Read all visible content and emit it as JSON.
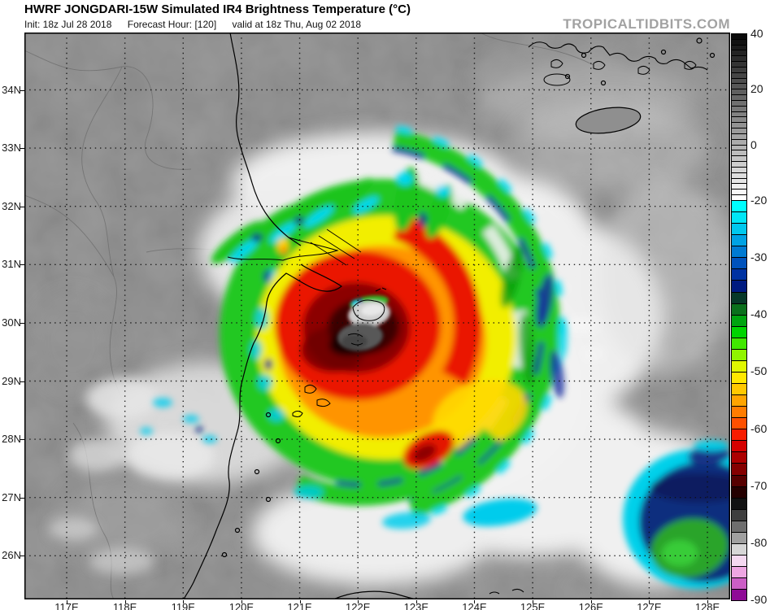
{
  "header": {
    "title": "HWRF JONGDARI-15W Simulated IR4 Brightness Temperature (°C)",
    "init": "Init: 18z Jul 28 2018",
    "forecast_hour": "Forecast Hour: [120]",
    "valid": "valid at 18z Thu, Aug 02 2018",
    "watermark": "TROPICALTIDBITS.COM"
  },
  "axes": {
    "lat_labels": [
      "34N",
      "33N",
      "32N",
      "31N",
      "30N",
      "29N",
      "28N",
      "27N",
      "26N"
    ],
    "lon_labels": [
      "117E",
      "118E",
      "119E",
      "120E",
      "121E",
      "122E",
      "123E",
      "124E",
      "125E",
      "126E",
      "127E",
      "128E"
    ]
  },
  "colorbar": {
    "units": "°C",
    "tick_values": [
      40,
      20,
      0,
      -20,
      -30,
      -40,
      -50,
      -60,
      -70,
      -80,
      -90
    ],
    "gray_segments": [
      "#0a0a0a",
      "#121212",
      "#1b1b1b",
      "#232323",
      "#2c2c2c",
      "#343434",
      "#3d3d3d",
      "#454545",
      "#4e4e4e",
      "#565656",
      "#5f5f5f",
      "#676767",
      "#707070",
      "#787878",
      "#818181",
      "#898989",
      "#929292",
      "#9a9a9a",
      "#a3a3a3",
      "#ababab",
      "#b4b4b4",
      "#bcbcbc",
      "#c5c5c5",
      "#cdcdcd",
      "#d6d6d6",
      "#dedede",
      "#e7e7e7",
      "#efefef",
      "#f8f8f8",
      "#ffffff"
    ],
    "color_segments": [
      "#00ffff",
      "#00e6f6",
      "#00c8ee",
      "#00a2e4",
      "#007ad2",
      "#0052bc",
      "#0032a2",
      "#001a80",
      "#063828",
      "#0a701c",
      "#00a410",
      "#00d400",
      "#40e800",
      "#90f400",
      "#e0f800",
      "#ffe800",
      "#ffc800",
      "#ffa400",
      "#ff7c00",
      "#ff5000",
      "#f81c00",
      "#d40000",
      "#ac0000",
      "#840000",
      "#560000",
      "#240000",
      "#111111",
      "#3e3e3e",
      "#6e6e6e",
      "#a0a0a0",
      "#d6d6d6",
      "#f4d8f0",
      "#eea6e2",
      "#cc5ec6",
      "#8e0a96"
    ]
  },
  "palette": {
    "background_gray": "#898989",
    "cloud_white": "#f0f0f0",
    "band_green": "#22c822",
    "band_yellow": "#f2ee00",
    "band_orange": "#ff9400",
    "band_red": "#ea1200",
    "band_dark_red": "#8c0404",
    "band_cyan": "#00ccec",
    "band_navy": "#1830a0",
    "eye_light_gray": "#cfcfcf",
    "eye_dark_gray": "#585858",
    "se_mass_blue": "#0e2e7e"
  }
}
